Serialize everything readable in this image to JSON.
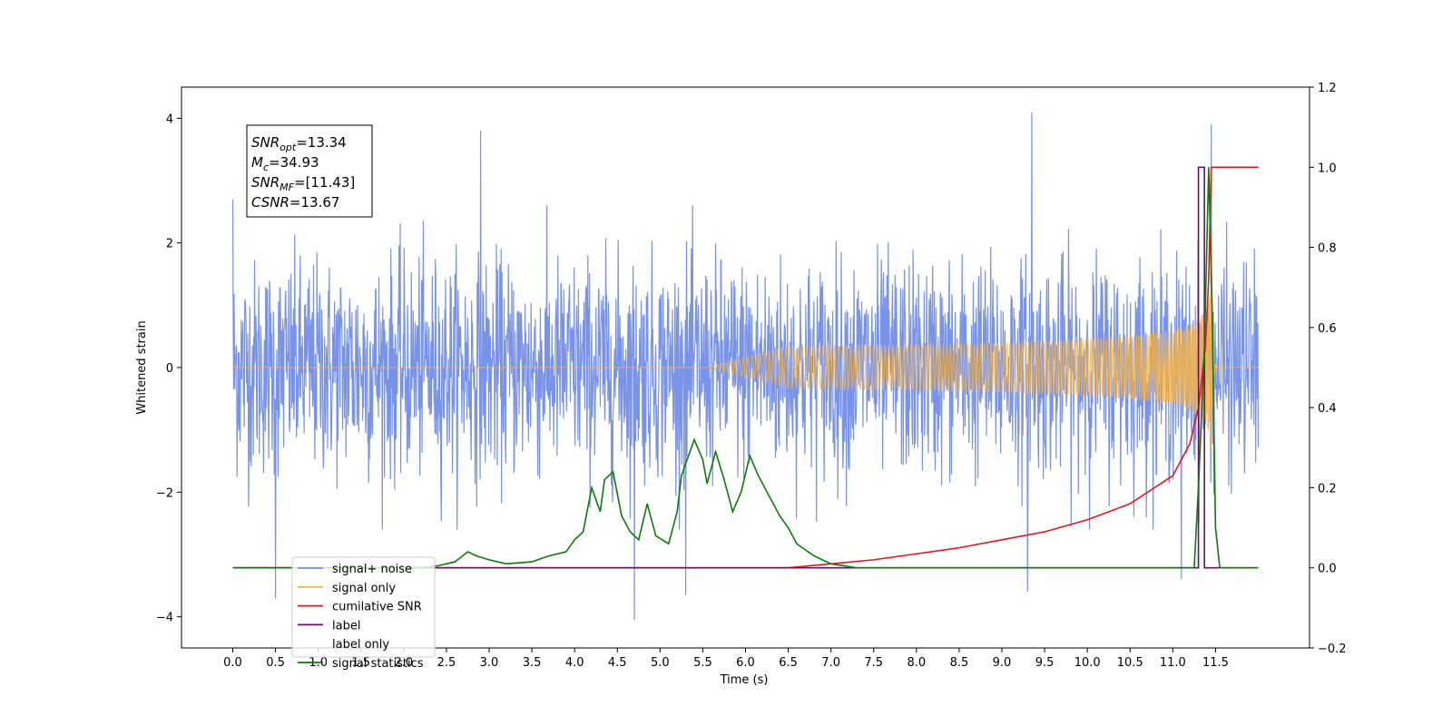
{
  "chart_data": {
    "type": "line",
    "xlabel": "Time (s)",
    "ylabel": "Whitened strain",
    "xlim": [
      -0.6,
      12.6
    ],
    "ylim": [
      -4.5,
      4.5
    ],
    "y2lim": [
      -0.2,
      1.2
    ],
    "x_ticks": [
      0.0,
      0.5,
      1.0,
      1.5,
      2.0,
      2.5,
      3.0,
      3.5,
      4.0,
      4.5,
      5.0,
      5.5,
      6.0,
      6.5,
      7.0,
      7.5,
      8.0,
      8.5,
      9.0,
      9.5,
      10.0,
      10.5,
      11.0,
      11.5
    ],
    "x_tick_labels": [
      "0.0",
      "0.5",
      "1.0",
      "1.5",
      "2.0",
      "2.5",
      "3.0",
      "3.5",
      "4.0",
      "4.5",
      "5.0",
      "5.5",
      "6.0",
      "6.5",
      "7.0",
      "7.5",
      "8.0",
      "8.5",
      "9.0",
      "9.5",
      "10.0",
      "10.5",
      "11.0",
      "11.5"
    ],
    "y_ticks": [
      -4,
      -2,
      0,
      2,
      4
    ],
    "y_tick_labels": [
      "−4",
      "−2",
      "0",
      "2",
      "4"
    ],
    "y2_ticks": [
      -0.2,
      0.0,
      0.2,
      0.4,
      0.6,
      0.8,
      1.0,
      1.2
    ],
    "y2_tick_labels": [
      "−0.2",
      "0.0",
      "0.2",
      "0.4",
      "0.6",
      "0.8",
      "1.0",
      "1.2"
    ],
    "grid": false,
    "legend_position": "bottom-left",
    "series": [
      {
        "name": "signal+ noise",
        "axis": "left",
        "color": "#7893e8",
        "style": "noisy band",
        "x_range": [
          0.0,
          12.0
        ],
        "typical_amplitude": 1.6,
        "peak_points": [
          [
            0.0,
            2.7
          ],
          [
            0.5,
            -3.7
          ],
          [
            2.9,
            3.8
          ],
          [
            4.7,
            -4.05
          ],
          [
            5.3,
            -3.65
          ],
          [
            9.35,
            4.1
          ],
          [
            9.3,
            -3.6
          ],
          [
            11.45,
            3.9
          ],
          [
            11.1,
            -3.4
          ]
        ]
      },
      {
        "name": "signal only",
        "axis": "left",
        "color": "#f5b44a",
        "style": "chirp",
        "x_range": [
          0.0,
          12.0
        ],
        "merger_time": 11.45,
        "peak_amplitude": 1.35
      },
      {
        "name": "cumilative SNR",
        "axis": "right",
        "color": "#e8141e",
        "points": [
          [
            0.0,
            0.0
          ],
          [
            6.5,
            0.0
          ],
          [
            7.0,
            0.01
          ],
          [
            7.5,
            0.02
          ],
          [
            8.0,
            0.035
          ],
          [
            8.5,
            0.05
          ],
          [
            9.0,
            0.07
          ],
          [
            9.5,
            0.09
          ],
          [
            10.0,
            0.12
          ],
          [
            10.5,
            0.16
          ],
          [
            11.0,
            0.23
          ],
          [
            11.2,
            0.31
          ],
          [
            11.3,
            0.4
          ],
          [
            11.38,
            0.55
          ],
          [
            11.42,
            0.72
          ],
          [
            11.45,
            1.0
          ],
          [
            12.0,
            1.0
          ]
        ]
      },
      {
        "name": "label",
        "axis": "right",
        "color": "#6a0f6e",
        "points": [
          [
            0.0,
            0.0
          ],
          [
            11.3,
            0.0
          ],
          [
            11.3,
            1.0
          ],
          [
            11.37,
            1.0
          ],
          [
            11.37,
            0.0
          ],
          [
            12.0,
            0.0
          ]
        ]
      },
      {
        "name": "label only",
        "axis": "right",
        "color": "#ffffff",
        "points": []
      },
      {
        "name": "signal statistics",
        "axis": "right",
        "color": "#0e7a0e",
        "points": [
          [
            0.0,
            0.0
          ],
          [
            2.2,
            0.0
          ],
          [
            2.4,
            0.005
          ],
          [
            2.6,
            0.015
          ],
          [
            2.75,
            0.04
          ],
          [
            2.85,
            0.03
          ],
          [
            3.0,
            0.02
          ],
          [
            3.2,
            0.01
          ],
          [
            3.5,
            0.015
          ],
          [
            3.7,
            0.03
          ],
          [
            3.9,
            0.04
          ],
          [
            4.0,
            0.07
          ],
          [
            4.1,
            0.09
          ],
          [
            4.2,
            0.2
          ],
          [
            4.3,
            0.14
          ],
          [
            4.35,
            0.22
          ],
          [
            4.45,
            0.24
          ],
          [
            4.55,
            0.13
          ],
          [
            4.65,
            0.09
          ],
          [
            4.75,
            0.07
          ],
          [
            4.85,
            0.16
          ],
          [
            4.95,
            0.08
          ],
          [
            5.1,
            0.06
          ],
          [
            5.2,
            0.14
          ],
          [
            5.25,
            0.23
          ],
          [
            5.4,
            0.32
          ],
          [
            5.5,
            0.27
          ],
          [
            5.55,
            0.21
          ],
          [
            5.65,
            0.29
          ],
          [
            5.75,
            0.22
          ],
          [
            5.85,
            0.14
          ],
          [
            5.95,
            0.19
          ],
          [
            6.05,
            0.28
          ],
          [
            6.15,
            0.23
          ],
          [
            6.3,
            0.17
          ],
          [
            6.4,
            0.13
          ],
          [
            6.5,
            0.1
          ],
          [
            6.6,
            0.06
          ],
          [
            6.8,
            0.03
          ],
          [
            7.0,
            0.01
          ],
          [
            7.3,
            0.0
          ],
          [
            11.25,
            0.0
          ],
          [
            11.3,
            0.2
          ],
          [
            11.37,
            0.55
          ],
          [
            11.42,
            1.0
          ],
          [
            11.46,
            0.65
          ],
          [
            11.5,
            0.1
          ],
          [
            11.55,
            0.0
          ],
          [
            12.0,
            0.0
          ]
        ]
      }
    ],
    "annotation": {
      "lines": [
        {
          "name": "SNR",
          "sub": "opt",
          "value": "=13.34"
        },
        {
          "name": "M",
          "sub": "c",
          "value": "=34.93"
        },
        {
          "name": "SNR",
          "sub": "MF",
          "value": "=[11.43]"
        },
        {
          "name": "CSNR",
          "sub": "",
          "value": "=13.67"
        }
      ]
    }
  }
}
